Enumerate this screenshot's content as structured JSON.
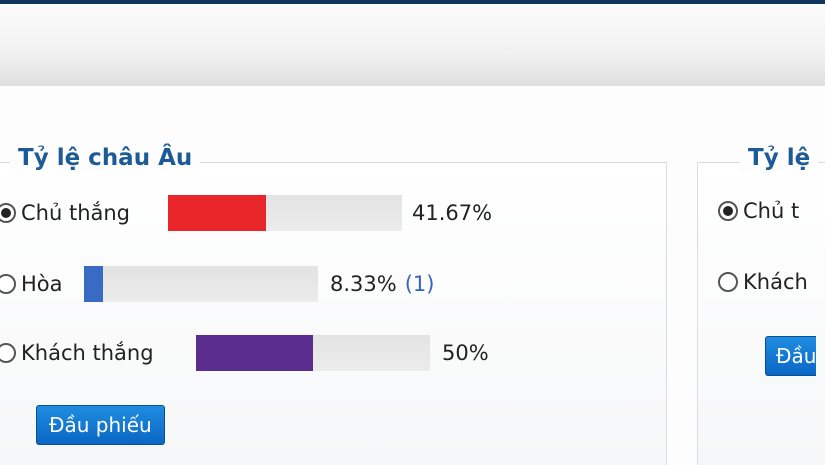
{
  "left_poll": {
    "title": "Tỷ lệ châu Âu",
    "options": [
      {
        "label": "Chủ thắng",
        "percent_text": "41.67%",
        "percent": 41.67,
        "count": "",
        "color": "#e8262a",
        "selected": true
      },
      {
        "label": "Hòa",
        "percent_text": "8.33%",
        "percent": 8.33,
        "count": "(1)",
        "color": "#3a6bc4",
        "selected": false
      },
      {
        "label": "Khách thắng",
        "percent_text": "50%",
        "percent": 50,
        "count": "",
        "color": "#5b2d8e",
        "selected": false
      }
    ],
    "vote_button": "Đầu phiếu"
  },
  "right_poll": {
    "title": "Tỷ lệ",
    "options": [
      {
        "label": "Chủ t",
        "selected": true
      },
      {
        "label": "Khách",
        "selected": false
      }
    ],
    "vote_button": "Đầu"
  }
}
